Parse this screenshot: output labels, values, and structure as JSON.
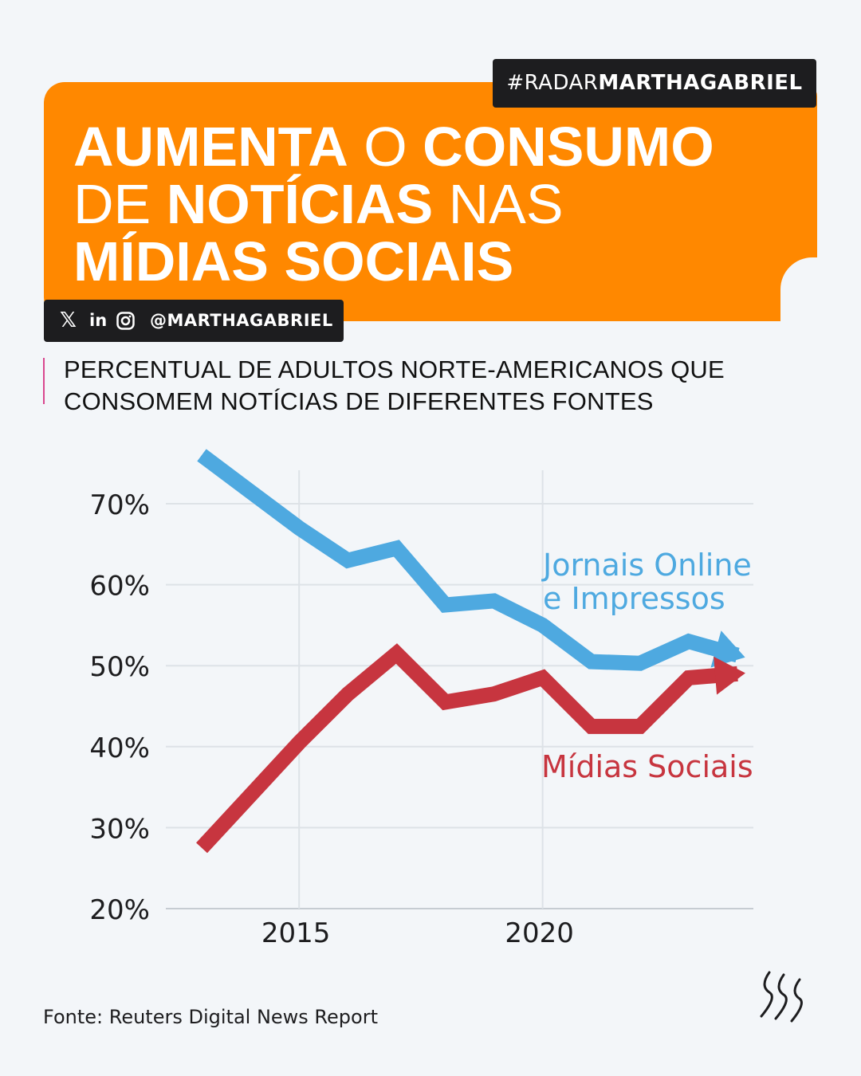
{
  "header": {
    "tag_prefix": "#RADAR",
    "tag_bold": "MARTHAGABRIEL",
    "headline": [
      {
        "text": "AUMENTA",
        "bold": true
      },
      {
        "text": " O ",
        "bold": false
      },
      {
        "text": "CONSUMO",
        "bold": true
      },
      {
        "text": "DE ",
        "bold": false,
        "break_before": true
      },
      {
        "text": "NOTÍCIAS",
        "bold": true
      },
      {
        "text": " NAS",
        "bold": false
      },
      {
        "text": "MÍDIAS SOCIAIS",
        "bold": true,
        "break_before": true
      }
    ],
    "social_handle": "@MARTHAGABRIEL",
    "social_icons": [
      "x-icon",
      "linkedin-icon",
      "instagram-icon"
    ]
  },
  "subtitle_lines": [
    "PERCENTUAL DE ADULTOS NORTE-AMERICANOS QUE",
    "CONSOMEM NOTÍCIAS DE DIFERENTES FONTES"
  ],
  "source": "Fonte: Reuters Digital News Report",
  "colors": {
    "orange": "#ff8800",
    "blue": "#4ea9e0",
    "red": "#c7353f",
    "dark": "#1d1d1f"
  },
  "chart_data": {
    "type": "line",
    "x": [
      2013,
      2014,
      2015,
      2016,
      2017,
      2018,
      2019,
      2020,
      2021,
      2022,
      2023,
      2024
    ],
    "series": [
      {
        "name": "Jornais Online e Impressos",
        "label_lines": [
          "Jornais Online",
          "e Impressos"
        ],
        "color": "#4ea9e0",
        "values": [
          76,
          71.5,
          67,
          63,
          64.5,
          57.5,
          58,
          55,
          50.5,
          50.3,
          53,
          51.3
        ]
      },
      {
        "name": "Mídias Sociais",
        "label_lines": [
          "Mídias Sociais"
        ],
        "color": "#c7353f",
        "values": [
          27.5,
          34,
          40.5,
          46.5,
          51.5,
          45.5,
          46.5,
          48.5,
          42.5,
          42.5,
          48.5,
          49
        ]
      }
    ],
    "ylim": [
      20,
      76
    ],
    "yticks": [
      20,
      30,
      40,
      50,
      60,
      70
    ],
    "ytick_labels": [
      "20%",
      "30%",
      "40%",
      "50%",
      "60%",
      "70%"
    ],
    "xticks": [
      2015,
      2020
    ],
    "xtick_labels": [
      "2015",
      "2020"
    ],
    "grid": true
  }
}
